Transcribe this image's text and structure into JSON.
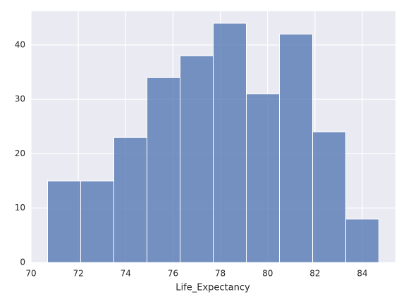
{
  "chart_data": {
    "type": "histogram",
    "xlabel": "Life_Expectancy",
    "bins": [
      70.7,
      72.1,
      73.5,
      74.9,
      76.3,
      77.7,
      79.1,
      80.5,
      81.9,
      83.3,
      84.7
    ],
    "counts": [
      15,
      15,
      23,
      34,
      38,
      44,
      31,
      42,
      24,
      8
    ],
    "color": "#4c72b0",
    "xlim": [
      70.0,
      85.4
    ],
    "xticks": [
      70,
      72,
      74,
      76,
      78,
      80,
      82,
      84
    ],
    "ylim": [
      0,
      46.2
    ],
    "yticks": [
      0,
      10,
      20,
      30,
      40
    ],
    "grid": true
  }
}
